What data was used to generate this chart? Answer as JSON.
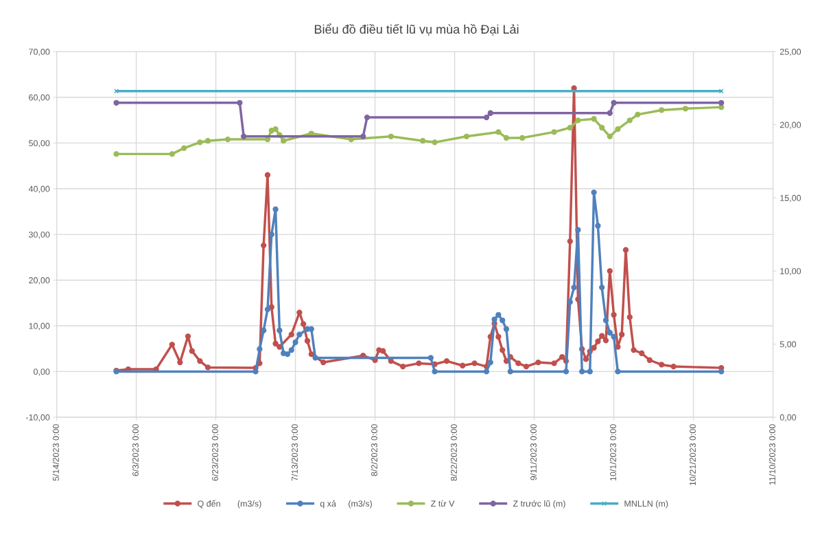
{
  "chart_data": {
    "type": "line",
    "title": "Biểu đồ điều tiết lũ vụ mùa hồ Đại Lải",
    "xlim": [
      "2023-05-14",
      "2023-11-10"
    ],
    "xticks": [
      {
        "value": "2023-05-14",
        "label": "5/14/2023 0:00"
      },
      {
        "value": "2023-06-03",
        "label": "6/3/2023 0:00"
      },
      {
        "value": "2023-06-23",
        "label": "6/23/2023 0:00"
      },
      {
        "value": "2023-07-13",
        "label": "7/13/2023 0:00"
      },
      {
        "value": "2023-08-02",
        "label": "8/2/2023 0:00"
      },
      {
        "value": "2023-08-22",
        "label": "8/22/2023 0:00"
      },
      {
        "value": "2023-09-11",
        "label": "9/11/2023 0:00"
      },
      {
        "value": "2023-10-01",
        "label": "10/1/2023 0:00"
      },
      {
        "value": "2023-10-21",
        "label": "10/21/2023 0:00"
      },
      {
        "value": "2023-11-10",
        "label": "11/10/2023 0:00"
      }
    ],
    "ylim": [
      -10,
      70
    ],
    "yticks": [
      {
        "value": -10,
        "label": "-10,00"
      },
      {
        "value": 0,
        "label": "0,00"
      },
      {
        "value": 10,
        "label": "10,00"
      },
      {
        "value": 20,
        "label": "20,00"
      },
      {
        "value": 30,
        "label": "30,00"
      },
      {
        "value": 40,
        "label": "40,00"
      },
      {
        "value": 50,
        "label": "50,00"
      },
      {
        "value": 60,
        "label": "60,00"
      },
      {
        "value": 70,
        "label": "70,00"
      }
    ],
    "y2lim": [
      0,
      25
    ],
    "y2ticks": [
      {
        "value": 0,
        "label": "0,00"
      },
      {
        "value": 5,
        "label": "5,00"
      },
      {
        "value": 10,
        "label": "10,00"
      },
      {
        "value": 15,
        "label": "15,00"
      },
      {
        "value": 20,
        "label": "20,00"
      },
      {
        "value": 25,
        "label": "25,00"
      }
    ],
    "grid": true,
    "legend": "bottom",
    "line_style": "solid",
    "series": [
      {
        "name": "Q đến       (m3/s)",
        "color": "#c0504d",
        "marker": "circle",
        "x": [
          "2023-05-29",
          "2023-06-01",
          "2023-06-08",
          "2023-06-12",
          "2023-06-14",
          "2023-06-16",
          "2023-06-17",
          "2023-06-19",
          "2023-06-21",
          "2023-07-03",
          "2023-07-04",
          "2023-07-05",
          "2023-07-06",
          "2023-07-07",
          "2023-07-08",
          "2023-07-09",
          "2023-07-12",
          "2023-07-14",
          "2023-07-15",
          "2023-07-16",
          "2023-07-17",
          "2023-07-20",
          "2023-07-30",
          "2023-08-02",
          "2023-08-03",
          "2023-08-04",
          "2023-08-06",
          "2023-08-09",
          "2023-08-13",
          "2023-08-17",
          "2023-08-20",
          "2023-08-24",
          "2023-08-27",
          "2023-08-30",
          "2023-08-31",
          "2023-09-01",
          "2023-09-02",
          "2023-09-03",
          "2023-09-04",
          "2023-09-05",
          "2023-09-07",
          "2023-09-09",
          "2023-09-12",
          "2023-09-16",
          "2023-09-18",
          "2023-09-19",
          "2023-09-20",
          "2023-09-21",
          "2023-09-22",
          "2023-09-23",
          "2023-09-24",
          "2023-09-25",
          "2023-09-26",
          "2023-09-27",
          "2023-09-28",
          "2023-09-29",
          "2023-09-30",
          "2023-10-01",
          "2023-10-02",
          "2023-10-03",
          "2023-10-04",
          "2023-10-05",
          "2023-10-06",
          "2023-10-08",
          "2023-10-10",
          "2023-10-13",
          "2023-10-16",
          "2023-10-28"
        ],
        "values": [
          0.2,
          0.5,
          0.5,
          5.9,
          2.0,
          7.7,
          4.5,
          2.3,
          0.9,
          0.8,
          1.8,
          27.6,
          43.0,
          14.1,
          6.1,
          5.4,
          8.1,
          12.9,
          10.4,
          6.7,
          3.8,
          2.0,
          3.5,
          2.5,
          4.7,
          4.5,
          2.3,
          1.1,
          1.8,
          1.6,
          2.3,
          1.3,
          1.8,
          1.1,
          7.6,
          10.5,
          7.6,
          4.7,
          2.3,
          3.2,
          1.8,
          1.1,
          2.0,
          1.8,
          3.2,
          2.3,
          28.5,
          62.0,
          15.8,
          4.9,
          2.7,
          4.4,
          5.2,
          6.6,
          7.8,
          6.8,
          22.0,
          12.4,
          5.4,
          8.1,
          26.6,
          11.9,
          4.7,
          4.0,
          2.5,
          1.5,
          1.1,
          0.8
        ]
      },
      {
        "name": "q xả     (m3/s)",
        "color": "#4f81bd",
        "marker": "circle",
        "x": [
          "2023-05-29",
          "2023-07-03",
          "2023-07-04",
          "2023-07-05",
          "2023-07-06",
          "2023-07-07",
          "2023-07-08",
          "2023-07-09",
          "2023-07-10",
          "2023-07-11",
          "2023-07-12",
          "2023-07-13",
          "2023-07-14",
          "2023-07-16",
          "2023-07-17",
          "2023-07-18",
          "2023-08-16",
          "2023-08-17",
          "2023-08-30",
          "2023-08-31",
          "2023-09-01",
          "2023-09-02",
          "2023-09-03",
          "2023-09-04",
          "2023-09-05",
          "2023-09-19",
          "2023-09-20",
          "2023-09-21",
          "2023-09-22",
          "2023-09-23",
          "2023-09-25",
          "2023-09-26",
          "2023-09-27",
          "2023-09-28",
          "2023-09-29",
          "2023-09-30",
          "2023-10-01",
          "2023-10-02",
          "2023-10-28"
        ],
        "values": [
          0,
          0,
          4.9,
          9.0,
          13.6,
          30.0,
          35.5,
          9.0,
          4.0,
          3.8,
          4.7,
          6.4,
          8.1,
          9.3,
          9.3,
          3.0,
          3.0,
          0,
          0,
          2.0,
          11.4,
          12.4,
          11.2,
          9.3,
          0,
          0,
          15.2,
          18.4,
          31.0,
          0,
          0,
          39.2,
          31.9,
          18.4,
          11.2,
          8.5,
          7.6,
          0,
          0
        ]
      },
      {
        "name": "Z từ V",
        "color": "#9bbb59",
        "marker": "circle",
        "axis": "y2",
        "x": [
          "2023-05-29",
          "2023-06-12",
          "2023-06-15",
          "2023-06-19",
          "2023-06-21",
          "2023-06-26",
          "2023-07-06",
          "2023-07-07",
          "2023-07-08",
          "2023-07-09",
          "2023-07-10",
          "2023-07-17",
          "2023-07-27",
          "2023-08-06",
          "2023-08-14",
          "2023-08-17",
          "2023-08-25",
          "2023-09-02",
          "2023-09-04",
          "2023-09-08",
          "2023-09-16",
          "2023-09-20",
          "2023-09-22",
          "2023-09-26",
          "2023-09-28",
          "2023-09-30",
          "2023-10-02",
          "2023-10-05",
          "2023-10-07",
          "2023-10-13",
          "2023-10-19",
          "2023-10-28"
        ],
        "values": [
          18.0,
          18.0,
          18.4,
          18.8,
          18.9,
          19.0,
          19.0,
          19.6,
          19.7,
          19.3,
          18.9,
          19.4,
          19.0,
          19.2,
          18.9,
          18.8,
          19.2,
          19.5,
          19.1,
          19.1,
          19.5,
          19.8,
          20.3,
          20.4,
          19.8,
          19.2,
          19.7,
          20.3,
          20.7,
          21.0,
          21.1,
          21.2
        ]
      },
      {
        "name": "Z trước lũ (m)",
        "color": "#8064a2",
        "marker": "circle",
        "axis": "y2",
        "x": [
          "2023-05-29",
          "2023-06-29",
          "2023-06-30",
          "2023-07-30",
          "2023-07-31",
          "2023-08-30",
          "2023-08-31",
          "2023-09-30",
          "2023-10-01",
          "2023-10-28"
        ],
        "values": [
          21.5,
          21.5,
          19.2,
          19.2,
          20.5,
          20.5,
          20.8,
          20.8,
          21.5,
          21.5
        ]
      },
      {
        "name": "MNLLN (m)",
        "color": "#4bacc6",
        "marker": "cross",
        "axis": "y2",
        "x": [
          "2023-05-29",
          "2023-10-28"
        ],
        "values": [
          22.3,
          22.3
        ]
      }
    ]
  }
}
